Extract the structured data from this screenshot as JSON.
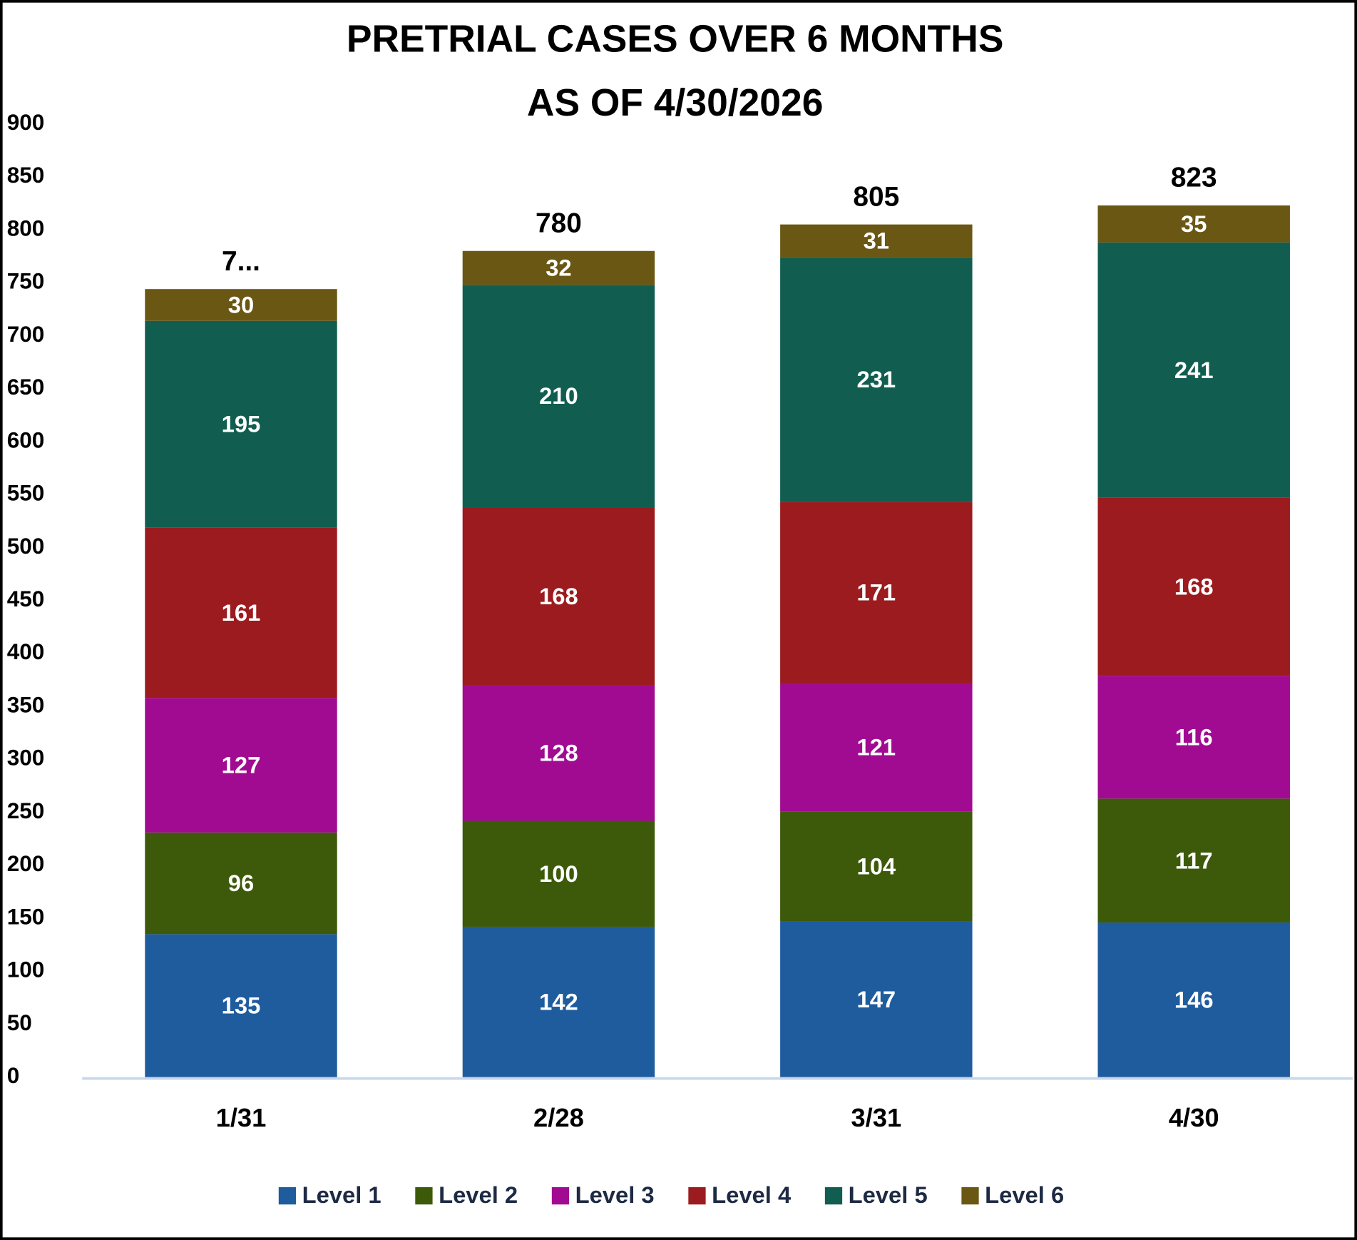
{
  "chart_data": {
    "type": "stacked_bar",
    "title": [
      "PRETRIAL CASES OVER 6 MONTHS",
      "AS OF 4/30/2026"
    ],
    "categories": [
      "1/31",
      "2/28",
      "3/31",
      "4/30"
    ],
    "series": [
      {
        "name": "Level 1",
        "color": "#1f5c9e",
        "values": [
          135,
          142,
          147,
          146
        ]
      },
      {
        "name": "Level 2",
        "color": "#3d5a0a",
        "values": [
          96,
          100,
          104,
          117
        ]
      },
      {
        "name": "Level 3",
        "color": "#a10b91",
        "values": [
          127,
          128,
          121,
          116
        ]
      },
      {
        "name": "Level 4",
        "color": "#9b1b1e",
        "values": [
          161,
          168,
          171,
          168
        ]
      },
      {
        "name": "Level 5",
        "color": "#115e50",
        "values": [
          195,
          210,
          231,
          241
        ]
      },
      {
        "name": "Level 6",
        "color": "#6b5714",
        "values": [
          30,
          32,
          31,
          35
        ]
      }
    ],
    "totals": {
      "values": [
        744,
        780,
        805,
        823
      ],
      "value_labels": [
        "7...",
        null,
        null,
        null
      ]
    },
    "ylim": [
      0,
      900
    ],
    "yticks": [
      0,
      50,
      100,
      150,
      200,
      250,
      300,
      350,
      400,
      450,
      500,
      550,
      600,
      650,
      700,
      750,
      800,
      850,
      900
    ],
    "grid": false,
    "legend": "bottom"
  }
}
